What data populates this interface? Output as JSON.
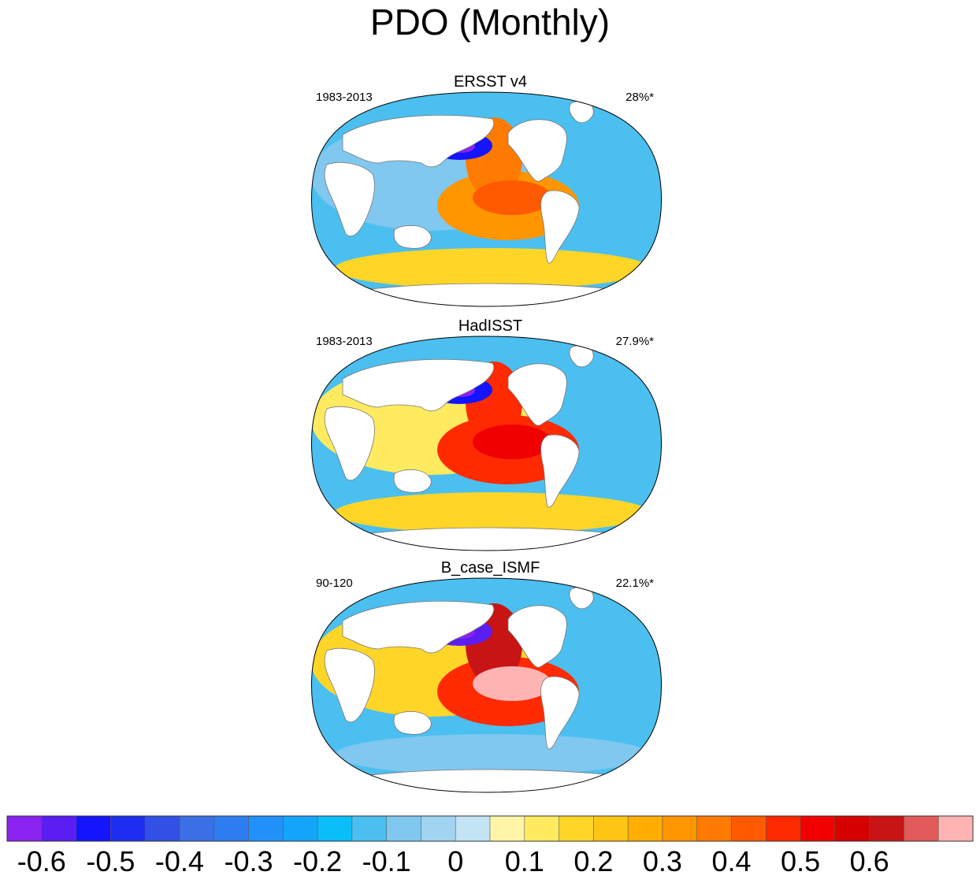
{
  "title": "PDO (Monthly)",
  "chart_data": [
    {
      "type": "heatmap",
      "title": "ERSST v4",
      "period": "1983-2013",
      "variance": "28%*",
      "projection": "Robinson",
      "pattern": {
        "north_pacific_min": -0.55,
        "eastern_pacific_max": 0.4,
        "tropical_pacific": 0.3,
        "southern_ocean_band": 0.15,
        "indian_ocean": -0.1
      }
    },
    {
      "type": "heatmap",
      "title": "HadISST",
      "period": "1983-2013",
      "variance": "27.9%*",
      "projection": "Robinson",
      "pattern": {
        "north_pacific_min": -0.55,
        "eastern_pacific_max": 0.5,
        "tropical_pacific": 0.45,
        "southern_ocean_band": 0.15,
        "indian_ocean": 0.1
      }
    },
    {
      "type": "heatmap",
      "title": "B_case_ISMF",
      "period": "90-120",
      "variance": "22.1%*",
      "projection": "Robinson",
      "pattern": {
        "north_pacific_min": -0.6,
        "eastern_pacific_max": 0.7,
        "tropical_pacific": 0.45,
        "southern_ocean_band": -0.1,
        "indian_ocean": 0.15
      }
    }
  ],
  "colorbar": {
    "levels": [
      -0.65,
      -0.6,
      -0.55,
      -0.5,
      -0.45,
      -0.4,
      -0.35,
      -0.3,
      -0.25,
      -0.2,
      -0.15,
      -0.1,
      -0.05,
      0,
      0.05,
      0.1,
      0.15,
      0.2,
      0.25,
      0.3,
      0.35,
      0.4,
      0.45,
      0.5,
      0.55,
      0.6,
      0.65,
      0.7
    ],
    "colors": [
      "#8a22f0",
      "#5a1ef2",
      "#1414ff",
      "#1e2ef0",
      "#3250e6",
      "#3a6fe6",
      "#2d7df0",
      "#2191fa",
      "#14a5fa",
      "#0abef8",
      "#4bbff0",
      "#80c8f0",
      "#a0d4f0",
      "#c2e4f4",
      "#fff5a8",
      "#ffea60",
      "#ffd628",
      "#ffc514",
      "#ffae00",
      "#ff9600",
      "#ff7a00",
      "#ff5a00",
      "#ff2a00",
      "#f00000",
      "#d60000",
      "#c81414",
      "#e25a5a",
      "#ffb4b4"
    ],
    "tick_labels": [
      "-0.6",
      "-0.5",
      "-0.4",
      "-0.3",
      "-0.2",
      "-0.1",
      "0",
      "0.1",
      "0.2",
      "0.3",
      "0.4",
      "0.5",
      "0.6"
    ],
    "tick_values": [
      -0.6,
      -0.5,
      -0.4,
      -0.3,
      -0.2,
      -0.1,
      0,
      0.1,
      0.2,
      0.3,
      0.4,
      0.5,
      0.6
    ]
  }
}
